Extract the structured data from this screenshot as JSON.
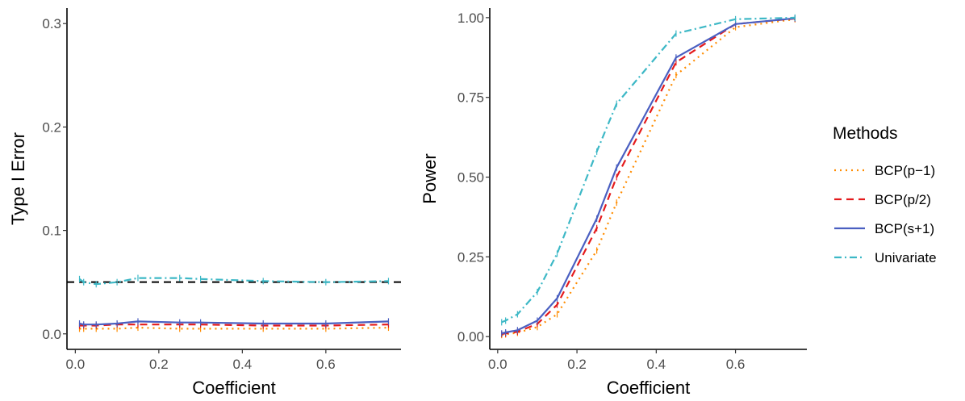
{
  "chart_data": [
    {
      "type": "line",
      "xlabel": "Coefficient",
      "ylabel": "Type I Error",
      "xlim": [
        -0.02,
        0.78
      ],
      "ylim": [
        -0.015,
        0.315
      ],
      "x_ticks": [
        0.0,
        0.2,
        0.4,
        0.6
      ],
      "x_tick_labels": [
        "0.0",
        "0.2",
        "0.4",
        "0.6"
      ],
      "y_ticks": [
        0.0,
        0.1,
        0.2,
        0.3
      ],
      "y_tick_labels": [
        "0.0",
        "0.1",
        "0.2",
        "0.3"
      ],
      "grid": false,
      "reference_line": {
        "y": 0.05,
        "style": "dashed",
        "color": "#000000"
      },
      "x": [
        0.01,
        0.02,
        0.05,
        0.1,
        0.15,
        0.25,
        0.3,
        0.45,
        0.6,
        0.75
      ],
      "series": [
        {
          "name": "BCP(p−1)",
          "color": "#FF8C00",
          "dash": "dotted",
          "values": [
            0.005,
            0.005,
            0.005,
            0.005,
            0.006,
            0.005,
            0.005,
            0.005,
            0.005,
            0.006
          ]
        },
        {
          "name": "BCP(p/2)",
          "color": "#E41A1C",
          "dash": "dashed",
          "values": [
            0.008,
            0.008,
            0.008,
            0.009,
            0.009,
            0.009,
            0.009,
            0.008,
            0.008,
            0.009
          ]
        },
        {
          "name": "BCP(s+1)",
          "color": "#4A5FC1",
          "dash": "solid",
          "values": [
            0.01,
            0.009,
            0.009,
            0.01,
            0.012,
            0.011,
            0.011,
            0.01,
            0.01,
            0.012
          ]
        },
        {
          "name": "Univariate",
          "color": "#3DB8C6",
          "dash": "dotdash",
          "values": [
            0.053,
            0.05,
            0.048,
            0.05,
            0.054,
            0.054,
            0.053,
            0.051,
            0.05,
            0.051
          ]
        }
      ]
    },
    {
      "type": "line",
      "xlabel": "Coefficient",
      "ylabel": "Power",
      "xlim": [
        -0.02,
        0.78
      ],
      "ylim": [
        -0.04,
        1.03
      ],
      "x_ticks": [
        0.0,
        0.2,
        0.4,
        0.6
      ],
      "x_tick_labels": [
        "0.0",
        "0.2",
        "0.4",
        "0.6"
      ],
      "y_ticks": [
        0.0,
        0.25,
        0.5,
        0.75,
        1.0
      ],
      "y_tick_labels": [
        "0.00",
        "0.25",
        "0.50",
        "0.75",
        "1.00"
      ],
      "grid": false,
      "x": [
        0.01,
        0.02,
        0.05,
        0.1,
        0.15,
        0.25,
        0.3,
        0.45,
        0.6,
        0.75
      ],
      "series": [
        {
          "name": "BCP(p−1)",
          "color": "#FF8C00",
          "dash": "dotted",
          "values": [
            0.005,
            0.007,
            0.012,
            0.03,
            0.07,
            0.27,
            0.42,
            0.82,
            0.97,
            0.995
          ]
        },
        {
          "name": "BCP(p/2)",
          "color": "#E41A1C",
          "dash": "dashed",
          "values": [
            0.008,
            0.01,
            0.015,
            0.04,
            0.1,
            0.34,
            0.5,
            0.86,
            0.98,
            0.997
          ]
        },
        {
          "name": "BCP(s+1)",
          "color": "#4A5FC1",
          "dash": "solid",
          "values": [
            0.01,
            0.013,
            0.02,
            0.05,
            0.12,
            0.37,
            0.53,
            0.875,
            0.98,
            0.998
          ]
        },
        {
          "name": "Univariate",
          "color": "#3DB8C6",
          "dash": "dotdash",
          "values": [
            0.045,
            0.05,
            0.07,
            0.14,
            0.26,
            0.58,
            0.73,
            0.95,
            0.995,
            1.0
          ]
        }
      ]
    }
  ],
  "legend": {
    "title": "Methods",
    "placement": "right",
    "items": [
      {
        "label": "BCP(p−1)",
        "color": "#FF8C00",
        "dash": "dotted"
      },
      {
        "label": "BCP(p/2)",
        "color": "#E41A1C",
        "dash": "dashed"
      },
      {
        "label": "BCP(s+1)",
        "color": "#4A5FC1",
        "dash": "solid"
      },
      {
        "label": "Univariate",
        "color": "#3DB8C6",
        "dash": "dotdash"
      }
    ]
  }
}
